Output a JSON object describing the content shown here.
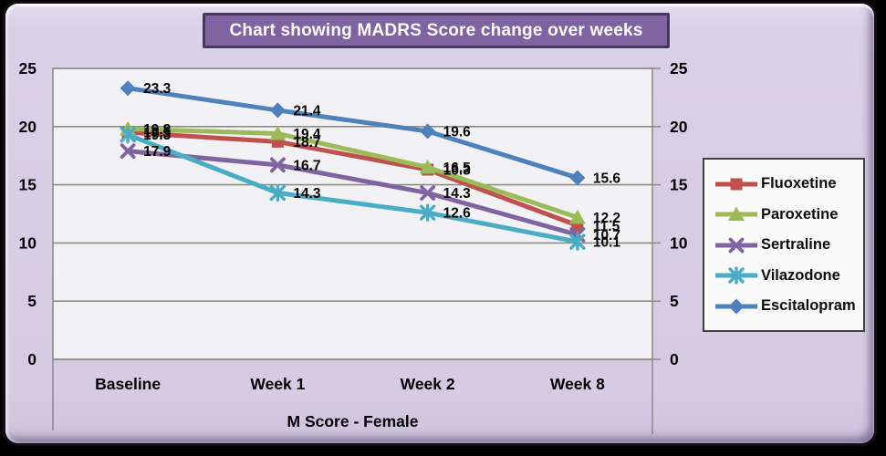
{
  "title": "Chart showing MADRS Score change over weeks",
  "chart_data": {
    "type": "line",
    "title": "Chart showing MADRS Score change over weeks",
    "categories": [
      "Baseline",
      "Week 1",
      "Week 2",
      "Week 8"
    ],
    "series": [
      {
        "name": "Fluoxetine",
        "marker": "square",
        "color": "#C0504D",
        "values": [
          19.5,
          18.7,
          16.3,
          11.5
        ]
      },
      {
        "name": "Paroxetine",
        "marker": "triangle",
        "color": "#9BBB59",
        "values": [
          19.8,
          19.4,
          16.5,
          12.2
        ]
      },
      {
        "name": "Sertraline",
        "marker": "x",
        "color": "#8064A2",
        "values": [
          17.9,
          16.7,
          14.3,
          10.7
        ]
      },
      {
        "name": "Vilazodone",
        "marker": "asterisk",
        "color": "#4BACC6",
        "values": [
          19.3,
          14.3,
          12.6,
          10.1
        ]
      },
      {
        "name": "Escitalopram",
        "marker": "diamond",
        "color": "#4F81BD",
        "values": [
          23.3,
          21.4,
          19.6,
          15.6
        ]
      }
    ],
    "xlabel": "M Score - Female",
    "ylabel": "",
    "ylim": [
      0,
      25
    ],
    "yticks": [
      0,
      5,
      10,
      15,
      20,
      25
    ],
    "grid": true,
    "data_labels": true,
    "legend_position": "right",
    "y_axis_sides": [
      "left",
      "right"
    ]
  },
  "colors": {
    "card_bg": "#D5CCE3",
    "plot_bg": "#F2F1F3",
    "grid": "#8C8C8C",
    "title_bg": "#8064A2",
    "title_border": "#46355F",
    "title_text": "#FFFFFF",
    "legend_bg": "#FAFAFA",
    "legend_border": "#404040",
    "label_text": "#000000"
  }
}
